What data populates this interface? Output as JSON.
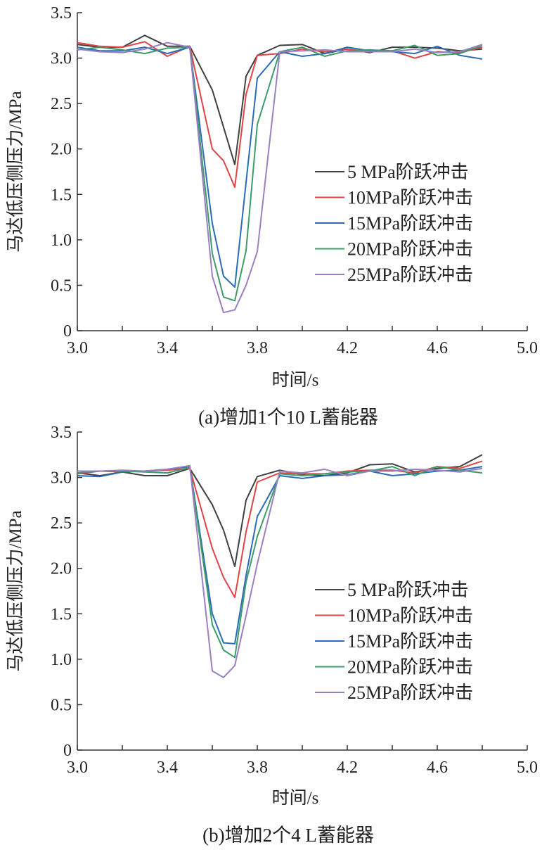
{
  "chart_data": [
    {
      "type": "line",
      "caption": "(a)增加1个10 L蓄能器",
      "xlabel": "时间/s",
      "ylabel": "马达低压侧压力/MPa",
      "xlim": [
        3.0,
        5.0
      ],
      "ylim": [
        0,
        3.5
      ],
      "xticks": [
        3.0,
        3.4,
        3.8,
        4.2,
        4.6,
        5.0
      ],
      "xtick_labels": [
        "3.0",
        "3.4",
        "3.8",
        "4.2",
        "4.6",
        "5.0"
      ],
      "yticks": [
        0,
        0.5,
        1.0,
        1.5,
        2.0,
        2.5,
        3.0,
        3.5
      ],
      "ytick_labels": [
        "0",
        "0.5",
        "1.0",
        "1.5",
        "2.0",
        "2.5",
        "3.0",
        "3.5"
      ],
      "legend_position": "right",
      "series": [
        {
          "name": " 5 MPa阶跃冲击",
          "color": "#404040",
          "x": [
            3.0,
            3.1,
            3.2,
            3.3,
            3.4,
            3.5,
            3.6,
            3.7,
            3.75,
            3.8,
            3.9,
            4.0,
            4.1,
            4.2,
            4.3,
            4.4,
            4.5,
            4.6,
            4.7,
            4.8
          ],
          "y": [
            3.15,
            3.12,
            3.12,
            3.25,
            3.13,
            3.13,
            2.65,
            1.83,
            2.8,
            3.03,
            3.14,
            3.15,
            3.05,
            3.1,
            3.06,
            3.12,
            3.12,
            3.11,
            3.08,
            3.1
          ]
        },
        {
          "name": "10MPa阶跃冲击",
          "color": "#e04545",
          "x": [
            3.0,
            3.1,
            3.2,
            3.3,
            3.4,
            3.5,
            3.6,
            3.65,
            3.7,
            3.75,
            3.8,
            3.9,
            4.0,
            4.1,
            4.2,
            4.3,
            4.4,
            4.5,
            4.6,
            4.7,
            4.8
          ],
          "y": [
            3.17,
            3.13,
            3.12,
            3.18,
            3.02,
            3.13,
            2.0,
            1.87,
            1.58,
            2.6,
            3.03,
            3.05,
            3.1,
            3.07,
            3.1,
            3.07,
            3.08,
            3.0,
            3.07,
            3.06,
            3.12
          ]
        },
        {
          "name": "15MPa阶跃冲击",
          "color": "#2b6cb6",
          "x": [
            3.0,
            3.1,
            3.2,
            3.3,
            3.4,
            3.5,
            3.6,
            3.65,
            3.7,
            3.8,
            3.9,
            4.0,
            4.1,
            4.2,
            4.3,
            4.4,
            4.5,
            4.6,
            4.7,
            4.8
          ],
          "y": [
            3.12,
            3.08,
            3.08,
            3.12,
            3.05,
            3.12,
            1.18,
            0.6,
            0.48,
            2.78,
            3.07,
            3.02,
            3.05,
            3.12,
            3.08,
            3.07,
            3.05,
            3.13,
            3.03,
            2.99
          ]
        },
        {
          "name": "20MPa阶跃冲击",
          "color": "#3e9c6a",
          "x": [
            3.0,
            3.1,
            3.2,
            3.3,
            3.4,
            3.5,
            3.6,
            3.65,
            3.7,
            3.75,
            3.8,
            3.9,
            4.0,
            4.1,
            4.2,
            4.3,
            4.4,
            4.5,
            4.6,
            4.7,
            4.8
          ],
          "y": [
            3.09,
            3.12,
            3.09,
            3.05,
            3.11,
            3.12,
            0.85,
            0.37,
            0.33,
            0.88,
            2.27,
            3.07,
            3.12,
            3.02,
            3.08,
            3.09,
            3.08,
            3.14,
            3.03,
            3.05,
            3.14
          ]
        },
        {
          "name": "25MPa阶跃冲击",
          "color": "#9a80c0",
          "x": [
            3.0,
            3.1,
            3.2,
            3.3,
            3.4,
            3.5,
            3.6,
            3.65,
            3.7,
            3.75,
            3.8,
            3.9,
            4.0,
            4.1,
            4.2,
            4.3,
            4.4,
            4.5,
            4.6,
            4.7,
            4.8
          ],
          "y": [
            3.1,
            3.07,
            3.06,
            3.1,
            3.17,
            3.12,
            0.6,
            0.2,
            0.23,
            0.5,
            0.87,
            3.07,
            3.08,
            3.09,
            3.07,
            3.07,
            3.07,
            3.1,
            3.06,
            3.07,
            3.15
          ]
        }
      ]
    },
    {
      "type": "line",
      "caption": "(b)增加2个4 L蓄能器",
      "xlabel": "时间/s",
      "ylabel": "马达低压侧压力/MPa",
      "xlim": [
        3.0,
        5.0
      ],
      "ylim": [
        0,
        3.5
      ],
      "xticks": [
        3.0,
        3.4,
        3.8,
        4.2,
        4.6,
        5.0
      ],
      "xtick_labels": [
        "3.0",
        "3.4",
        "3.8",
        "4.2",
        "4.6",
        "5.0"
      ],
      "yticks": [
        0,
        0.5,
        1.0,
        1.5,
        2.0,
        2.5,
        3.0,
        3.5
      ],
      "ytick_labels": [
        "0",
        "0.5",
        "1.0",
        "1.5",
        "2.0",
        "2.5",
        "3.0",
        "3.5"
      ],
      "legend_position": "right",
      "series": [
        {
          "name": " 5 MPa阶跃冲击",
          "color": "#404040",
          "x": [
            3.0,
            3.1,
            3.2,
            3.3,
            3.4,
            3.5,
            3.6,
            3.65,
            3.7,
            3.75,
            3.8,
            3.9,
            4.0,
            4.1,
            4.2,
            4.3,
            4.4,
            4.5,
            4.6,
            4.7,
            4.8
          ],
          "y": [
            3.05,
            3.02,
            3.06,
            3.02,
            3.02,
            3.1,
            2.7,
            2.42,
            2.02,
            2.75,
            3.01,
            3.08,
            3.03,
            3.02,
            3.05,
            3.14,
            3.15,
            3.06,
            3.1,
            3.12,
            3.25
          ]
        },
        {
          "name": "10MPa阶跃冲击",
          "color": "#e04545",
          "x": [
            3.0,
            3.1,
            3.2,
            3.3,
            3.4,
            3.5,
            3.6,
            3.65,
            3.7,
            3.75,
            3.8,
            3.9,
            4.0,
            4.1,
            4.2,
            4.3,
            4.4,
            4.5,
            4.6,
            4.7,
            4.8
          ],
          "y": [
            3.04,
            3.07,
            3.06,
            3.07,
            3.08,
            3.1,
            2.22,
            1.9,
            1.68,
            2.4,
            2.95,
            3.05,
            3.04,
            3.04,
            3.07,
            3.08,
            3.08,
            3.05,
            3.12,
            3.1,
            3.18
          ]
        },
        {
          "name": "15MPa阶跃冲击",
          "color": "#2b6cb6",
          "x": [
            3.0,
            3.1,
            3.2,
            3.3,
            3.4,
            3.5,
            3.6,
            3.65,
            3.7,
            3.75,
            3.8,
            3.9,
            4.0,
            4.1,
            4.2,
            4.3,
            4.4,
            4.5,
            4.6,
            4.7,
            4.8
          ],
          "y": [
            3.02,
            3.01,
            3.06,
            3.07,
            3.09,
            3.12,
            1.5,
            1.18,
            1.17,
            1.92,
            2.57,
            3.02,
            2.99,
            3.02,
            3.03,
            3.07,
            3.02,
            3.04,
            3.07,
            3.08,
            3.12
          ]
        },
        {
          "name": "20MPa阶跃冲击",
          "color": "#3e9c6a",
          "x": [
            3.0,
            3.1,
            3.2,
            3.3,
            3.4,
            3.5,
            3.6,
            3.65,
            3.7,
            3.75,
            3.8,
            3.9,
            4.0,
            4.1,
            4.2,
            4.3,
            4.4,
            4.5,
            4.6,
            4.7,
            4.8
          ],
          "y": [
            3.05,
            3.07,
            3.07,
            3.06,
            3.05,
            3.11,
            1.38,
            1.1,
            1.02,
            1.85,
            2.35,
            3.04,
            3.02,
            3.04,
            3.06,
            3.07,
            3.12,
            3.02,
            3.12,
            3.08,
            3.05
          ]
        },
        {
          "name": "25MPa阶跃冲击",
          "color": "#9a80c0",
          "x": [
            3.0,
            3.1,
            3.2,
            3.3,
            3.4,
            3.5,
            3.6,
            3.65,
            3.7,
            3.75,
            3.8,
            3.9,
            4.0,
            4.1,
            4.2,
            4.3,
            4.4,
            4.5,
            4.6,
            4.7,
            4.8
          ],
          "y": [
            3.07,
            3.07,
            3.08,
            3.07,
            3.09,
            3.13,
            0.87,
            0.8,
            0.93,
            1.48,
            2.05,
            3.07,
            3.05,
            3.09,
            3.02,
            3.07,
            3.07,
            3.09,
            3.08,
            3.06,
            3.1
          ]
        }
      ]
    }
  ]
}
